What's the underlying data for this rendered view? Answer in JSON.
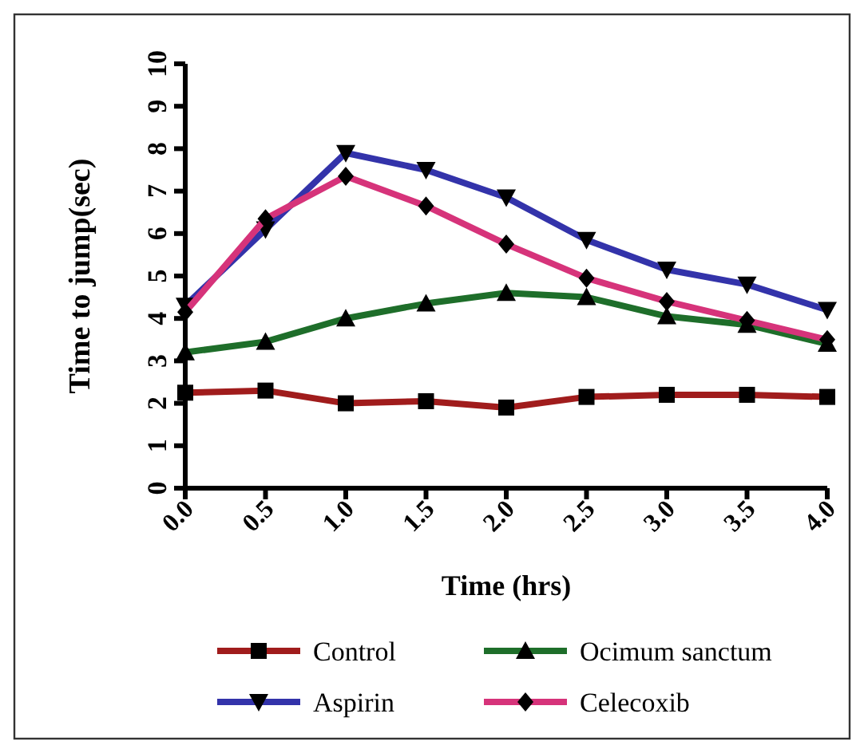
{
  "chart_data": {
    "type": "line",
    "xlabel": "Time (hrs)",
    "ylabel": "Time to jump(sec)",
    "x": [
      0,
      0.5,
      1,
      1.5,
      2,
      2.5,
      3,
      3.5,
      4
    ],
    "xlim": [
      0,
      4
    ],
    "xticks": [
      {
        "value": 0,
        "label": "0.0"
      },
      {
        "value": 0.5,
        "label": "0.5"
      },
      {
        "value": 1,
        "label": "1.0"
      },
      {
        "value": 1.5,
        "label": "1.5"
      },
      {
        "value": 2,
        "label": "2.0"
      },
      {
        "value": 2.5,
        "label": "2.5"
      },
      {
        "value": 3,
        "label": "3.0"
      },
      {
        "value": 3.5,
        "label": "3.5"
      },
      {
        "value": 4,
        "label": "4.0"
      }
    ],
    "ylim": [
      0,
      10
    ],
    "yticks": [
      0,
      1,
      2,
      3,
      4,
      5,
      6,
      7,
      8,
      9,
      10
    ],
    "grid": false,
    "legend": "bottom",
    "series": [
      {
        "name": "Control",
        "color": "#a01c1c",
        "marker": "square",
        "values": [
          2.25,
          2.3,
          2.0,
          2.05,
          1.9,
          2.15,
          2.2,
          2.2,
          2.15
        ]
      },
      {
        "name": "Ocimum sanctum",
        "color": "#1e6e2a",
        "marker": "triangle",
        "values": [
          3.2,
          3.45,
          4.0,
          4.35,
          4.6,
          4.5,
          4.05,
          3.85,
          3.4
        ]
      },
      {
        "name": "Aspirin",
        "color": "#3333aa",
        "marker": "triangle-down",
        "values": [
          4.3,
          6.1,
          7.9,
          7.5,
          6.85,
          5.85,
          5.15,
          4.8,
          4.2
        ]
      },
      {
        "name": "Celecoxib",
        "color": "#d6337a",
        "marker": "diamond",
        "values": [
          4.15,
          6.35,
          7.35,
          6.65,
          5.75,
          4.95,
          4.4,
          3.95,
          3.5
        ]
      }
    ]
  }
}
